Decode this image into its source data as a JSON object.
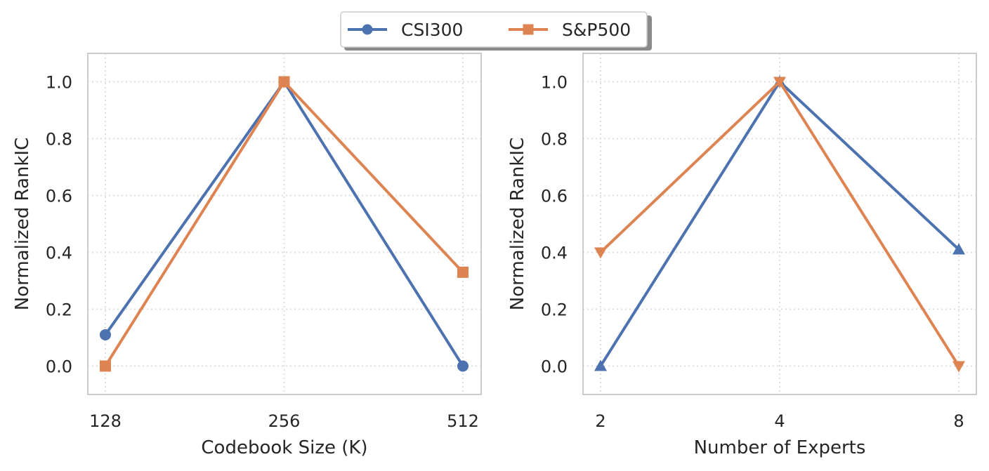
{
  "legend": {
    "placement": "top-center",
    "items": [
      {
        "label": "CSI300",
        "color": "#4c72b0",
        "marker": "circle"
      },
      {
        "label": "S&P500",
        "color": "#dd8452",
        "marker": "square"
      }
    ]
  },
  "chart_data": [
    {
      "type": "line",
      "xlabel": "Codebook Size (K)",
      "ylabel": "Normalized RankIC",
      "x": [
        128,
        256,
        512
      ],
      "x_tick_labels": [
        "128",
        "256",
        "512"
      ],
      "ylim": [
        -0.1,
        1.1
      ],
      "y_ticks": [
        0.0,
        0.2,
        0.4,
        0.6,
        0.8,
        1.0
      ],
      "y_tick_labels": [
        "0.0",
        "0.2",
        "0.4",
        "0.6",
        "0.8",
        "1.0"
      ],
      "grid": true,
      "series": [
        {
          "name": "CSI300",
          "color": "#4c72b0",
          "marker": "circle",
          "values": [
            0.11,
            1.0,
            0.0
          ]
        },
        {
          "name": "S&P500",
          "color": "#dd8452",
          "marker": "square",
          "values": [
            0.0,
            1.0,
            0.33
          ]
        }
      ]
    },
    {
      "type": "line",
      "xlabel": "Number of Experts",
      "ylabel": "Normalized RankIC",
      "x": [
        2,
        4,
        8
      ],
      "x_tick_labels": [
        "2",
        "4",
        "8"
      ],
      "ylim": [
        -0.1,
        1.1
      ],
      "y_ticks": [
        0.0,
        0.2,
        0.4,
        0.6,
        0.8,
        1.0
      ],
      "y_tick_labels": [
        "0.0",
        "0.2",
        "0.4",
        "0.6",
        "0.8",
        "1.0"
      ],
      "grid": true,
      "series": [
        {
          "name": "CSI300",
          "color": "#4c72b0",
          "marker": "triangle-up",
          "values": [
            0.0,
            1.0,
            0.41
          ]
        },
        {
          "name": "S&P500",
          "color": "#dd8452",
          "marker": "triangle-down",
          "values": [
            0.4,
            1.0,
            0.0
          ]
        }
      ]
    }
  ]
}
